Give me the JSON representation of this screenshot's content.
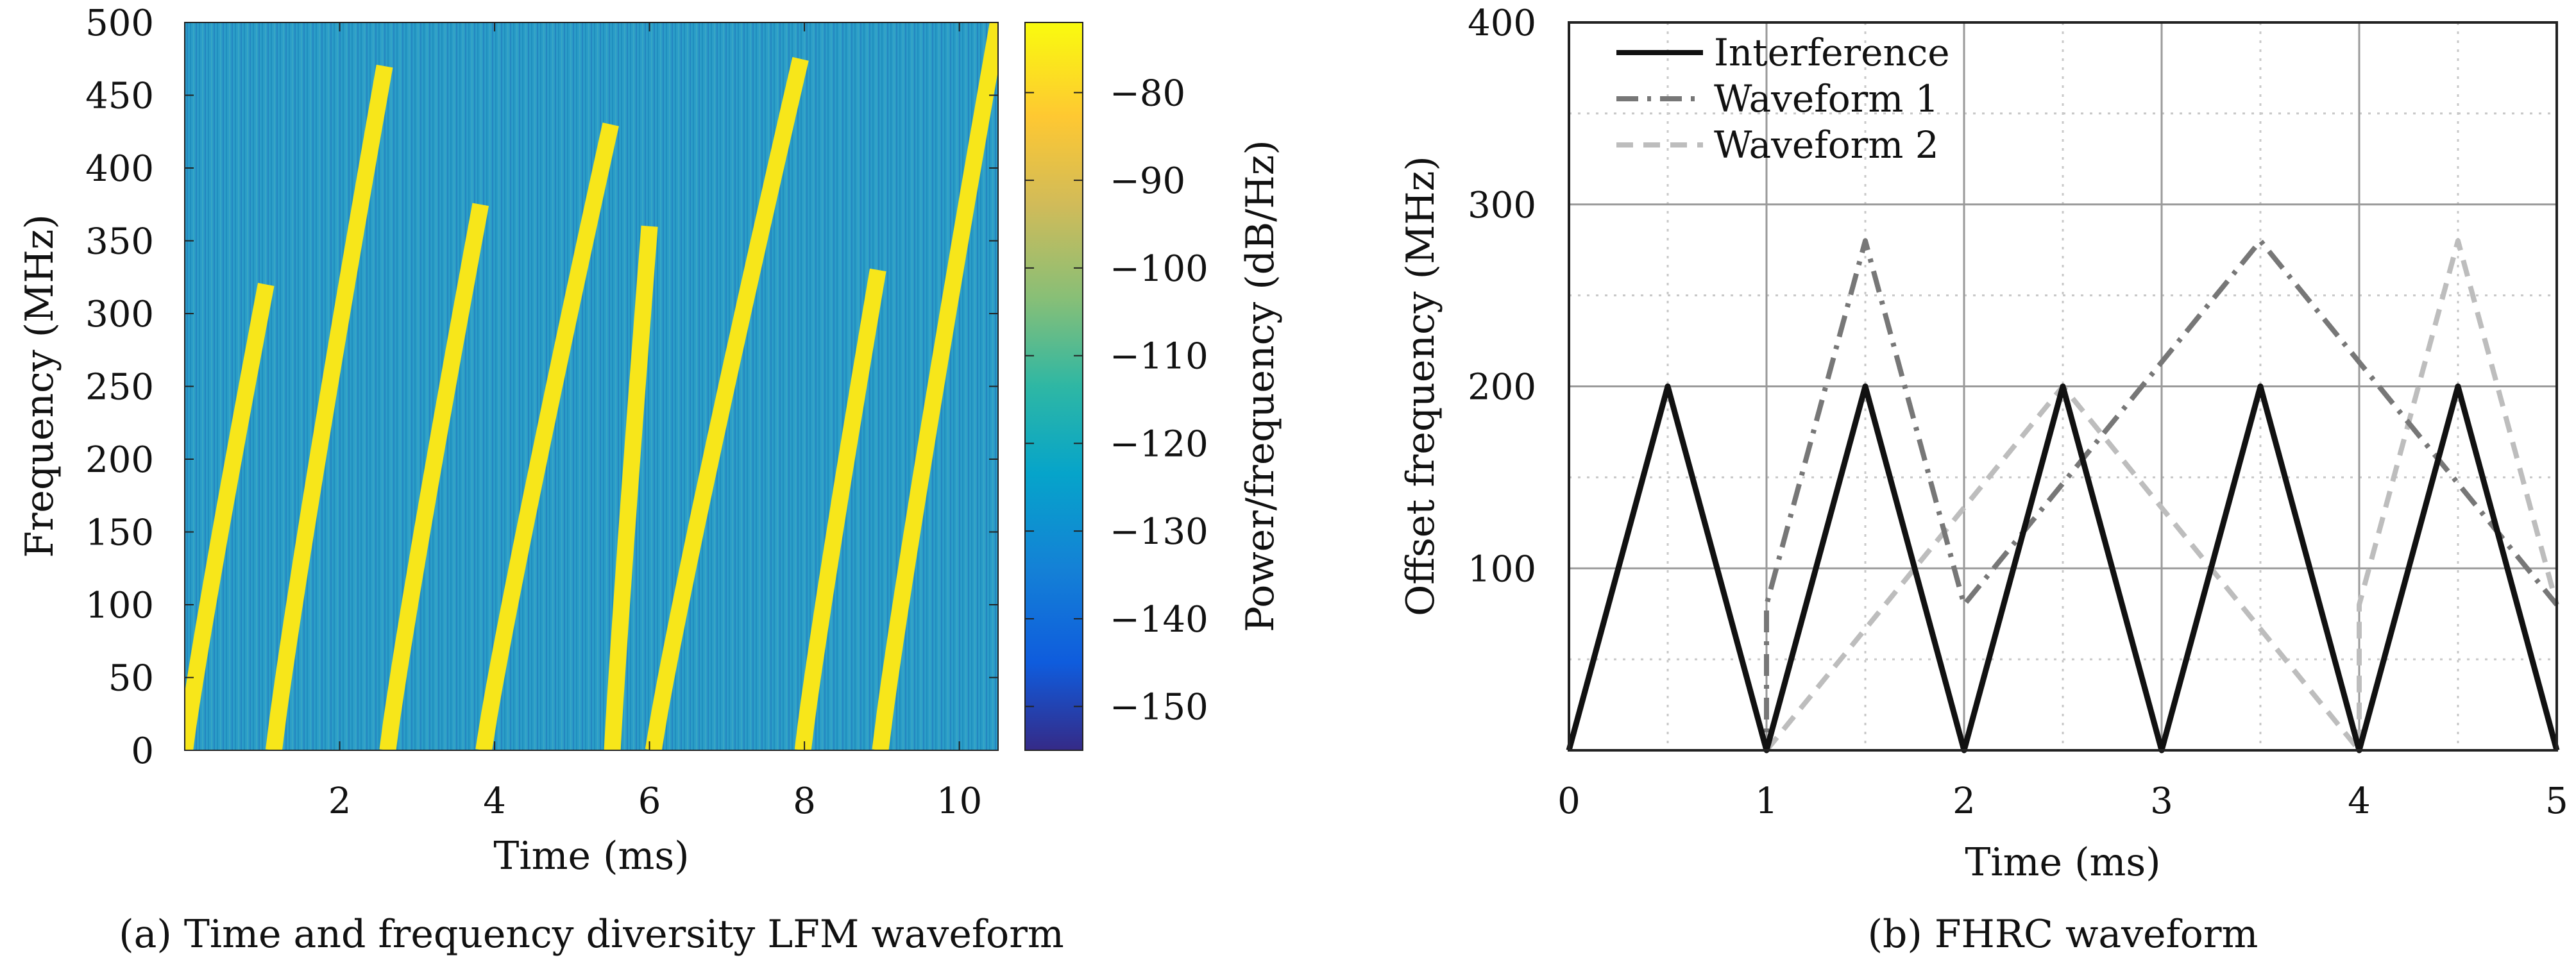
{
  "chart_data": [
    {
      "type": "heatmap",
      "caption": "(a) Time and frequency diversity LFM waveform",
      "xlabel": "Time (ms)",
      "ylabel": "Frequency (MHz)",
      "xlim": [
        0,
        10.5
      ],
      "ylim": [
        0,
        500
      ],
      "xticks": [
        2,
        4,
        6,
        8,
        10
      ],
      "yticks": [
        0,
        50,
        100,
        150,
        200,
        250,
        300,
        350,
        400,
        450,
        500
      ],
      "colorbar": {
        "label": "Power/frequency (dB/Hz)",
        "range": [
          -155,
          -72
        ],
        "ticks": [
          -80,
          -90,
          -100,
          -110,
          -120,
          -130,
          -140,
          -150
        ],
        "tick_labels": [
          "−80",
          "−90",
          "−100",
          "−110",
          "−120",
          "−130",
          "−140",
          "−150"
        ]
      },
      "background_level": -128,
      "chirp_level": -76,
      "chirps": [
        {
          "t_start": 0.0,
          "t_end": 1.05,
          "f_start": 0,
          "f_end": 320
        },
        {
          "t_start": 1.15,
          "t_end": 2.58,
          "f_start": 0,
          "f_end": 470
        },
        {
          "t_start": 2.62,
          "t_end": 3.82,
          "f_start": 0,
          "f_end": 375
        },
        {
          "t_start": 3.86,
          "t_end": 5.5,
          "f_start": 0,
          "f_end": 430
        },
        {
          "t_start": 5.52,
          "t_end": 6.0,
          "f_start": 0,
          "f_end": 360
        },
        {
          "t_start": 6.05,
          "t_end": 7.95,
          "f_start": 0,
          "f_end": 475
        },
        {
          "t_start": 7.98,
          "t_end": 8.95,
          "f_start": 0,
          "f_end": 330
        },
        {
          "t_start": 8.98,
          "t_end": 10.5,
          "f_start": 0,
          "f_end": 500
        }
      ]
    },
    {
      "type": "line",
      "caption": "(b) FHRC waveform",
      "xlabel": "Time (ms)",
      "ylabel": "Offset frequency (MHz)",
      "xlim": [
        0,
        5
      ],
      "ylim": [
        0,
        400
      ],
      "xticks": [
        0,
        1,
        2,
        3,
        4,
        5
      ],
      "yticks": [
        100,
        200,
        300,
        400
      ],
      "grid": true,
      "legend_position": "top-left",
      "series": [
        {
          "name": "Interference",
          "style": "solid",
          "color": "#111111",
          "x": [
            0,
            0.5,
            1,
            1.5,
            2,
            2.5,
            3,
            3.5,
            4,
            4.5,
            5
          ],
          "y": [
            0,
            200,
            0,
            200,
            0,
            200,
            0,
            200,
            0,
            200,
            0
          ]
        },
        {
          "name": "Waveform 1",
          "style": "dashdot",
          "color": "#777777",
          "x": [
            0,
            0.5,
            1,
            1.0,
            1.5,
            2,
            3.5,
            5
          ],
          "y": [
            0,
            200,
            0,
            80,
            280,
            80,
            280,
            80
          ]
        },
        {
          "name": "Waveform 2",
          "style": "dashed",
          "color": "#bdbdbd",
          "x": [
            0,
            0.5,
            1,
            2.5,
            4,
            4.0,
            4.5,
            5
          ],
          "y": [
            0,
            200,
            0,
            200,
            0,
            80,
            280,
            80
          ]
        }
      ]
    }
  ]
}
